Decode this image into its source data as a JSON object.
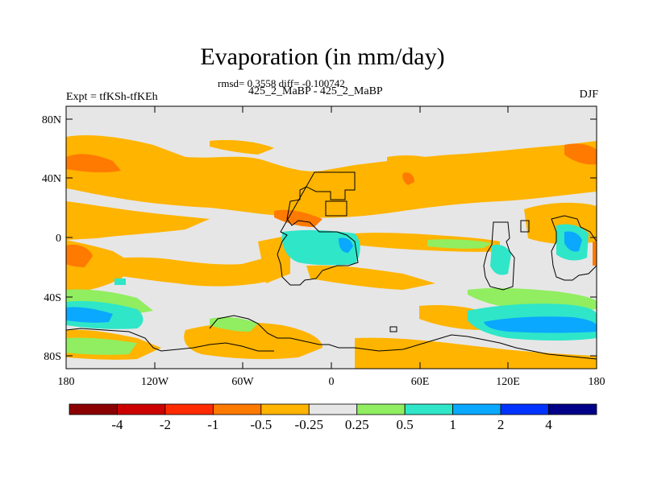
{
  "title": "Evaporation (in mm/day)",
  "stats": "rmsd= 0.3558 diff= -0.100742",
  "experiments": "425_2_MaBP - 425_2_MaBP",
  "left_label": "Expt = tfKSh-tfKEh",
  "right_label": "DJF",
  "lat_ticks": [
    "80N",
    "40N",
    "0",
    "40S",
    "80S"
  ],
  "lon_ticks": [
    "180",
    "120W",
    "60W",
    "0",
    "60E",
    "120E",
    "180"
  ],
  "colorbar": {
    "colors": [
      "#8b0000",
      "#cc0000",
      "#ff2a00",
      "#ff7a00",
      "#ffb400",
      "#e6e6e6",
      "#90ee60",
      "#2fe6c8",
      "#0aa8ff",
      "#0033ff",
      "#000088"
    ],
    "labels": [
      "-4",
      "-2",
      "-1",
      "-0.5",
      "-0.25",
      "0.25",
      "0.5",
      "1",
      "2",
      "4"
    ]
  }
}
